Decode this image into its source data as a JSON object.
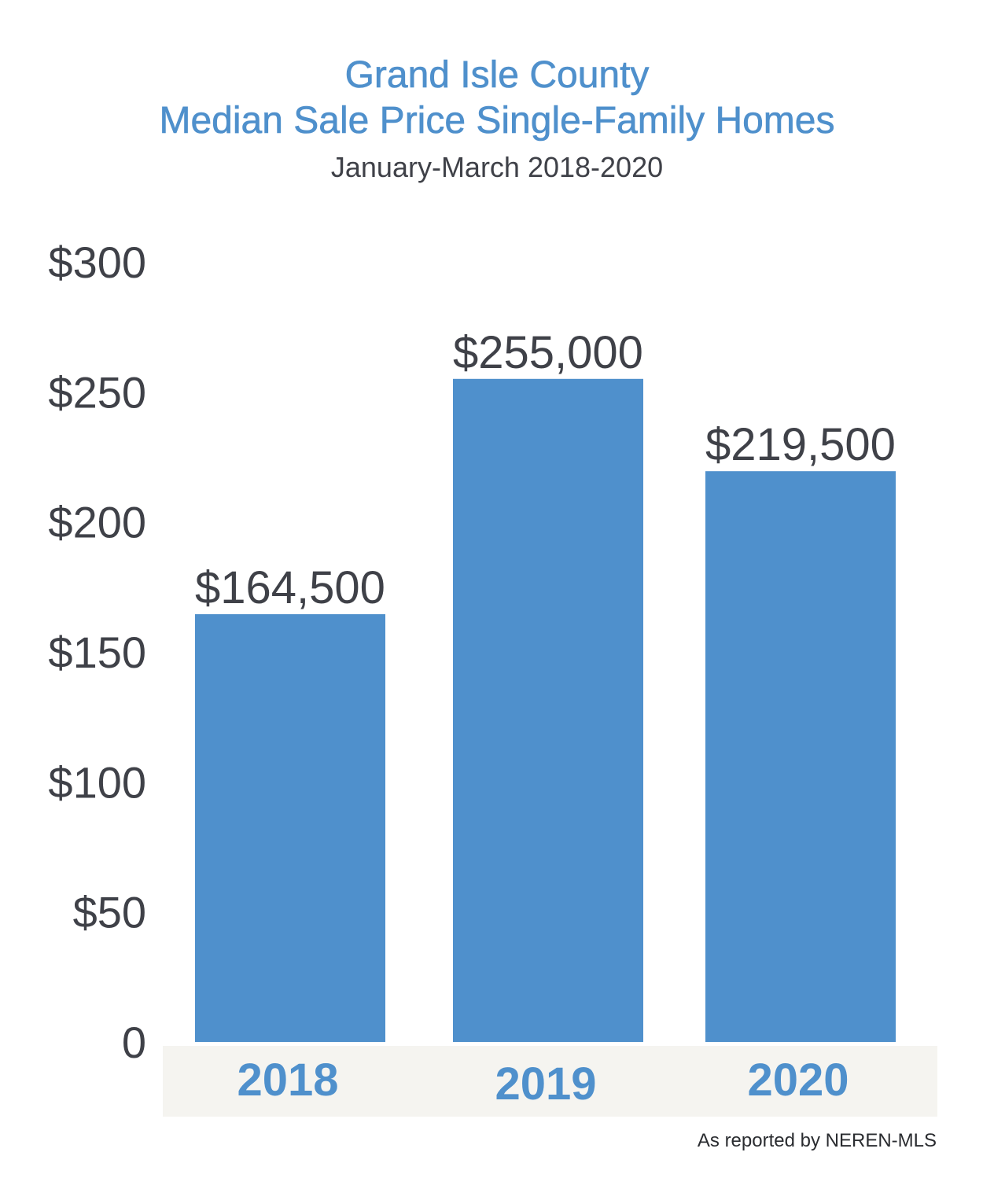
{
  "chart_data": {
    "type": "bar",
    "title_line1": "Grand Isle County",
    "title_line2": "Median Sale Price Single-Family Homes",
    "subtitle": "January-March 2018-2020",
    "categories": [
      "2018",
      "2019",
      "2020"
    ],
    "values": [
      164500,
      255000,
      219500
    ],
    "value_labels": [
      "$164,500",
      "$255,000",
      "$219,500"
    ],
    "y_ticks": [
      {
        "value": 0,
        "label": "0"
      },
      {
        "value": 50000,
        "label": "$50"
      },
      {
        "value": 100000,
        "label": "$100"
      },
      {
        "value": 150000,
        "label": "$150"
      },
      {
        "value": 200000,
        "label": "$200"
      },
      {
        "value": 250000,
        "label": "$250"
      },
      {
        "value": 300000,
        "label": "$300"
      }
    ],
    "ylim": [
      0,
      300000
    ],
    "xlabel": "",
    "ylabel": "",
    "grid": false,
    "legend": "none",
    "bar_color": "#4f90cc",
    "category_band_color": "#f5f4f0"
  },
  "source_note": "As reported by NEREN-MLS"
}
